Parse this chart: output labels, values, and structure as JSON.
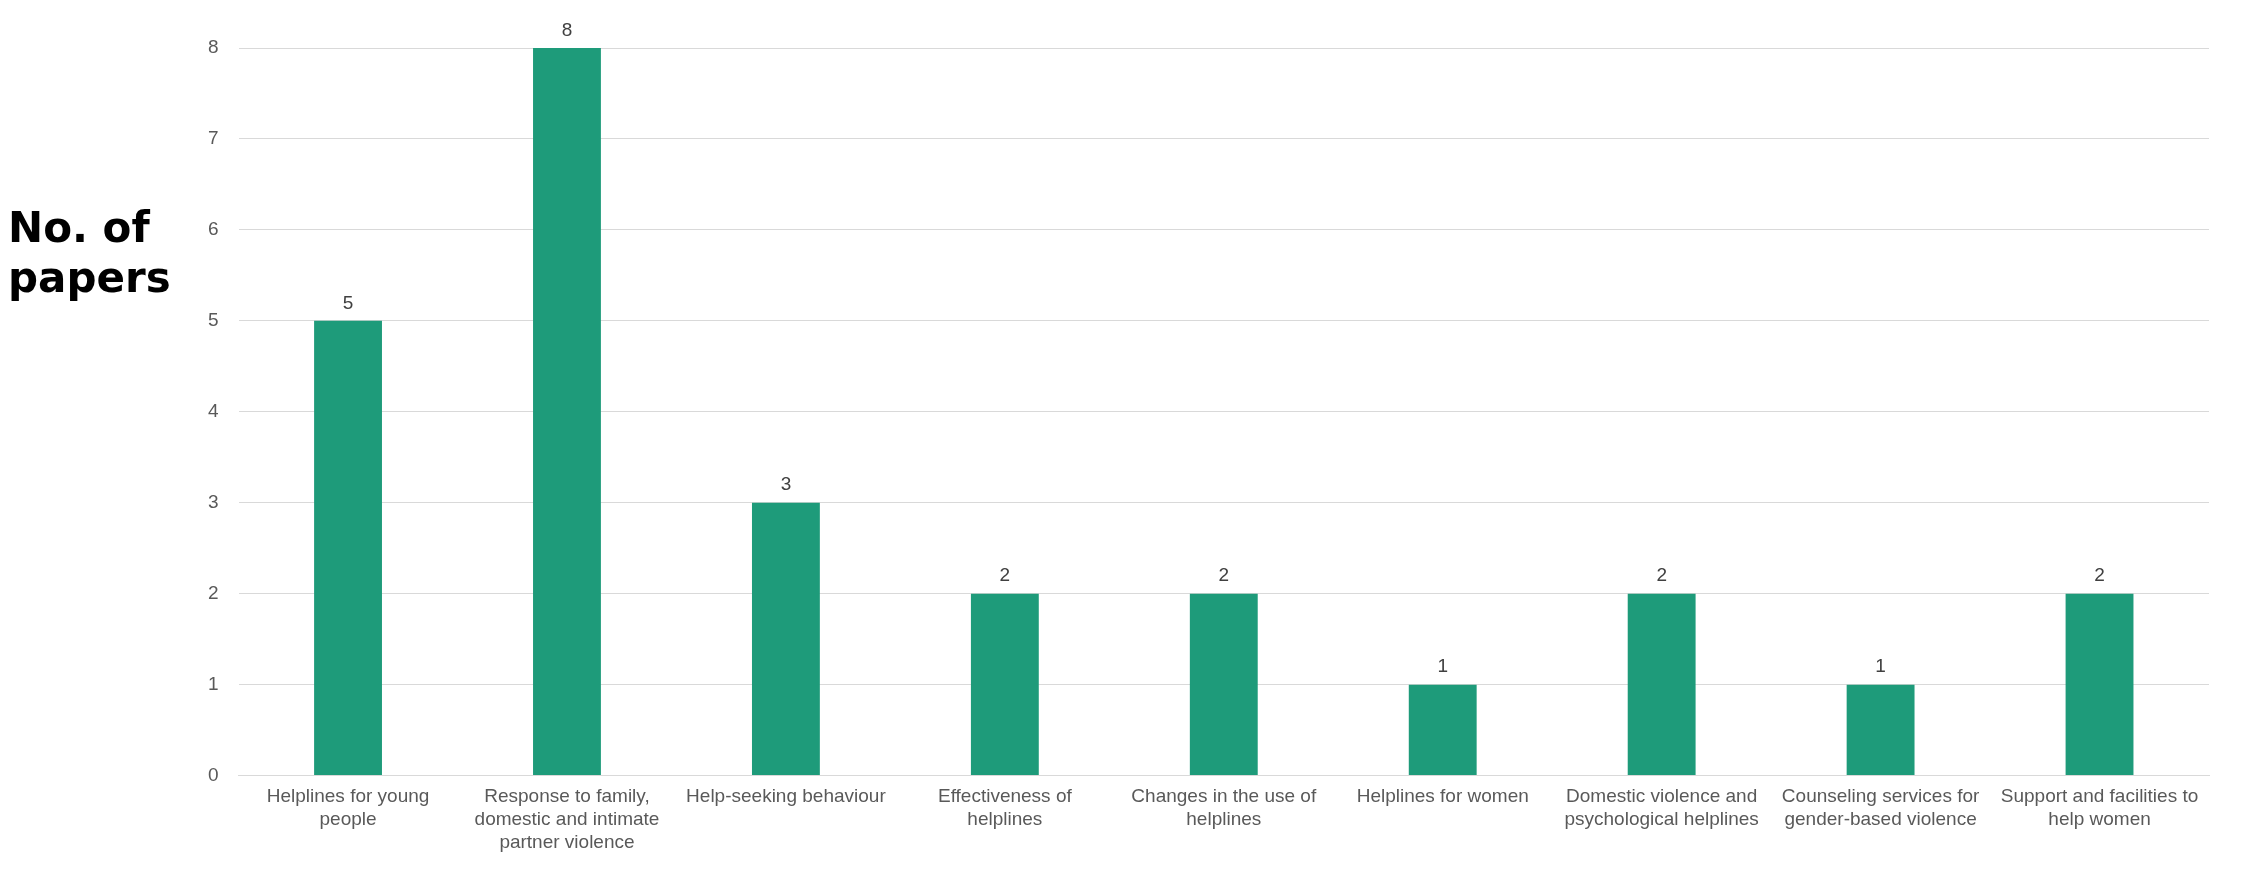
{
  "chart_data": {
    "type": "bar",
    "ylabel": "No. of papers",
    "categories": [
      "Helplines for young people",
      "Response to family, domestic and intimate partner violence",
      "Help-seeking behaviour",
      "Effectiveness of helplines",
      "Changes in the use of helplines",
      "Helplines for women",
      "Domestic violence and psychological helplines",
      "Counseling services for gender-based violence",
      "Support and facilities to help women"
    ],
    "values": [
      5,
      8,
      3,
      2,
      2,
      1,
      2,
      1,
      2
    ],
    "color": "#1e9b7a",
    "ylim": [
      0,
      8
    ],
    "yticks": [
      0,
      1,
      2,
      3,
      4,
      5,
      6,
      7,
      8
    ],
    "grid": "y",
    "data_labels": true,
    "legend": false
  }
}
